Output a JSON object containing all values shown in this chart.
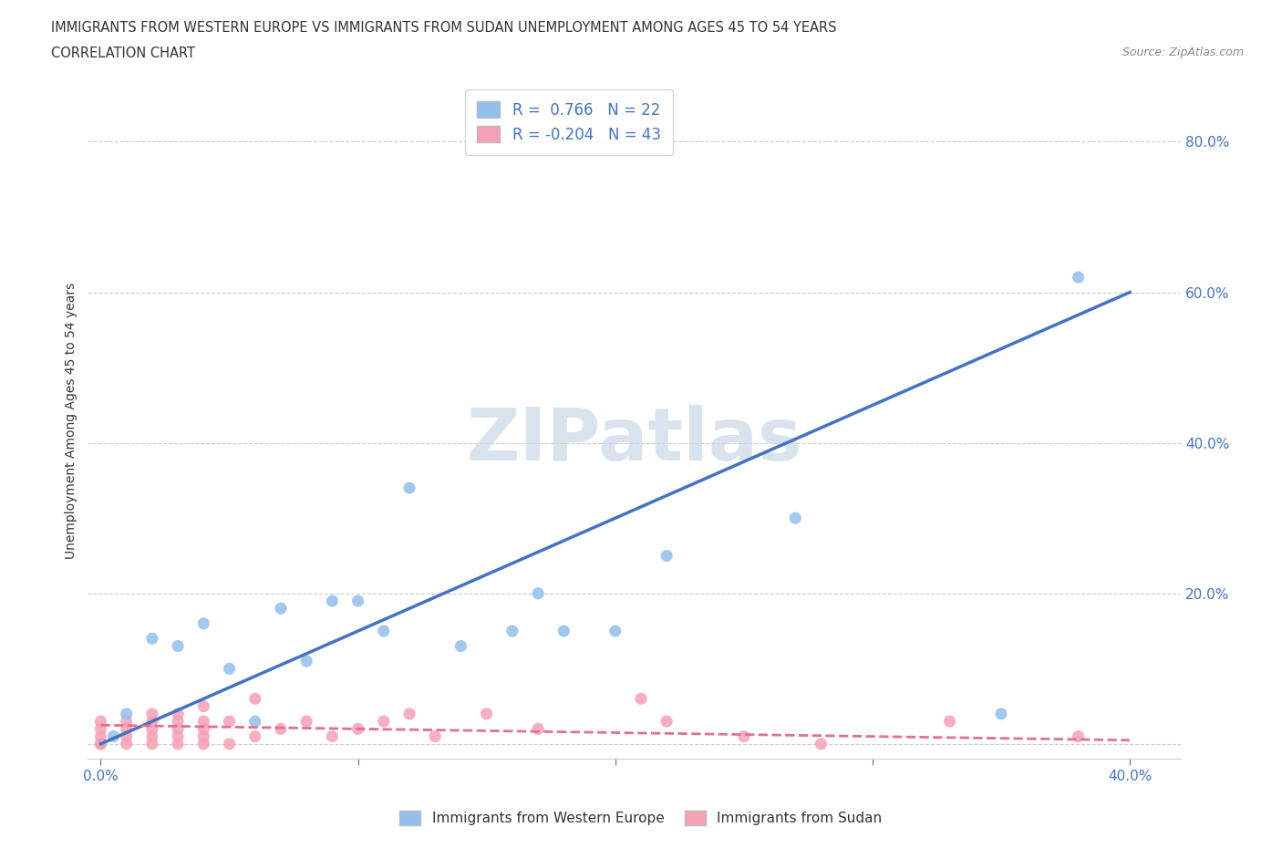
{
  "title_line1": "IMMIGRANTS FROM WESTERN EUROPE VS IMMIGRANTS FROM SUDAN UNEMPLOYMENT AMONG AGES 45 TO 54 YEARS",
  "title_line2": "CORRELATION CHART",
  "source": "Source: ZipAtlas.com",
  "ylabel": "Unemployment Among Ages 45 to 54 years",
  "watermark": "ZIPatlas",
  "blue_R": 0.766,
  "blue_N": 22,
  "pink_R": -0.204,
  "pink_N": 43,
  "blue_color": "#92BFEC",
  "pink_color": "#F5A0B5",
  "blue_line_color": "#4472C4",
  "pink_line_color": "#E07090",
  "blue_line_x": [
    0.0,
    0.4
  ],
  "blue_line_y": [
    0.0,
    0.6
  ],
  "pink_line_x": [
    0.0,
    0.4
  ],
  "pink_line_y": [
    0.025,
    0.005
  ],
  "xlim": [
    -0.005,
    0.42
  ],
  "ylim": [
    -0.02,
    0.88
  ],
  "blue_scatter_x": [
    0.005,
    0.01,
    0.02,
    0.03,
    0.04,
    0.05,
    0.06,
    0.07,
    0.08,
    0.09,
    0.1,
    0.11,
    0.12,
    0.14,
    0.16,
    0.17,
    0.18,
    0.2,
    0.22,
    0.27,
    0.35,
    0.38
  ],
  "blue_scatter_y": [
    0.01,
    0.04,
    0.14,
    0.13,
    0.16,
    0.1,
    0.03,
    0.18,
    0.11,
    0.19,
    0.19,
    0.15,
    0.34,
    0.13,
    0.15,
    0.2,
    0.15,
    0.15,
    0.25,
    0.3,
    0.04,
    0.62
  ],
  "pink_scatter_x": [
    0.0,
    0.0,
    0.0,
    0.0,
    0.0,
    0.01,
    0.01,
    0.01,
    0.01,
    0.02,
    0.02,
    0.02,
    0.02,
    0.02,
    0.03,
    0.03,
    0.03,
    0.03,
    0.03,
    0.04,
    0.04,
    0.04,
    0.04,
    0.04,
    0.05,
    0.05,
    0.06,
    0.06,
    0.07,
    0.08,
    0.09,
    0.1,
    0.11,
    0.12,
    0.13,
    0.15,
    0.17,
    0.21,
    0.22,
    0.25,
    0.28,
    0.33,
    0.38
  ],
  "pink_scatter_y": [
    0.0,
    0.0,
    0.01,
    0.02,
    0.03,
    0.0,
    0.01,
    0.02,
    0.03,
    0.0,
    0.01,
    0.02,
    0.03,
    0.04,
    0.0,
    0.01,
    0.02,
    0.03,
    0.04,
    0.0,
    0.01,
    0.02,
    0.03,
    0.05,
    0.0,
    0.03,
    0.01,
    0.06,
    0.02,
    0.03,
    0.01,
    0.02,
    0.03,
    0.04,
    0.01,
    0.04,
    0.02,
    0.06,
    0.03,
    0.01,
    0.0,
    0.03,
    0.01
  ],
  "legend_label_blue": "Immigrants from Western Europe",
  "legend_label_pink": "Immigrants from Sudan",
  "background_color": "#FFFFFF",
  "grid_color": "#CCCCCC",
  "title_color": "#333333",
  "axis_color": "#4472C4",
  "watermark_color": "#C8D8E8",
  "scatter_size": 60
}
